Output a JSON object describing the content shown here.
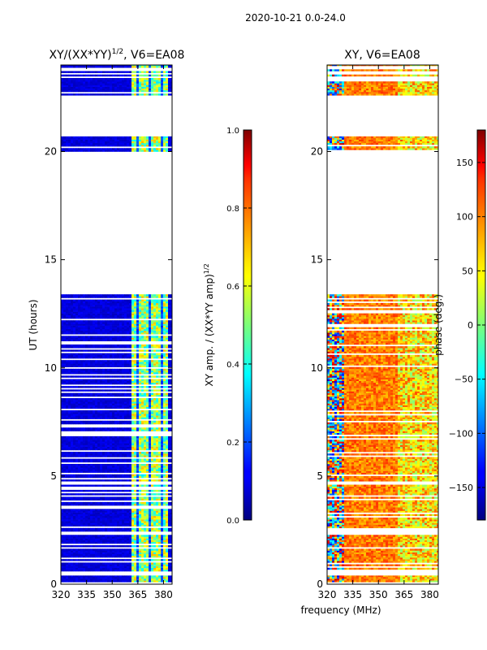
{
  "figure": {
    "suptitle": "2020-10-21 0.0-24.0"
  },
  "chart_data": [
    {
      "type": "heatmap",
      "title": "XY/(XX*YY)",
      "title_exp": "1/2",
      "title_suffix": ", V6=EA08",
      "xlabel": "",
      "ylabel": "UT (hours)",
      "xlim": [
        320,
        385
      ],
      "ylim": [
        0,
        24
      ],
      "xticks": [
        320,
        335,
        350,
        365,
        380
      ],
      "yticks": [
        0,
        5,
        10,
        15,
        20
      ],
      "valid_time_ranges_hours": [
        [
          0.1,
          0.4
        ],
        [
          0.6,
          13.4
        ],
        [
          20.0,
          20.7
        ],
        [
          22.6,
          24.0
        ]
      ],
      "bright_channel_band_mhz": [
        361,
        383
      ],
      "colorbar": {
        "label_main": "XY amp. / (XX*YY amp)",
        "label_exp": "1/2",
        "range": [
          0.0,
          1.0
        ],
        "ticks": [
          "0.0",
          "0.2",
          "0.4",
          "0.6",
          "0.8",
          "1.0"
        ],
        "colormap": "jet"
      }
    },
    {
      "type": "heatmap",
      "title": "XY, V6=EA08",
      "xlabel": "frequency (MHz)",
      "ylabel": "",
      "xlim": [
        320,
        385
      ],
      "ylim": [
        0,
        24
      ],
      "xticks": [
        320,
        335,
        350,
        365,
        380
      ],
      "yticks": [
        0,
        5,
        10,
        15,
        20
      ],
      "valid_time_ranges_hours": [
        [
          0.1,
          0.4
        ],
        [
          0.6,
          13.4
        ],
        [
          20.0,
          20.7
        ],
        [
          22.6,
          24.0
        ]
      ],
      "colorbar": {
        "label": "phase (deg.)",
        "range": [
          -180,
          180
        ],
        "ticks": [
          "−150",
          "−100",
          "−50",
          "0",
          "50",
          "100",
          "150"
        ],
        "tick_values": [
          -150,
          -100,
          -50,
          0,
          50,
          100,
          150
        ],
        "colormap": "jet"
      }
    }
  ]
}
